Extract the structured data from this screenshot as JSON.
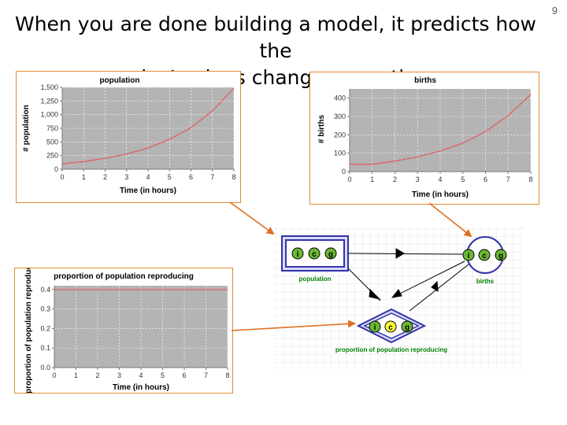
{
  "slide": {
    "number": "9",
    "title_line1": "When you are done building a model, it predicts how the",
    "title_line2": "nodes’ values changes over time."
  },
  "chart_data": [
    {
      "type": "line",
      "title": "population",
      "xlabel": "Time (in hours)",
      "ylabel": "# population",
      "x": [
        0,
        1,
        2,
        3,
        4,
        5,
        6,
        7,
        8
      ],
      "series": [
        {
          "values": [
            100,
            140,
            200,
            280,
            390,
            550,
            760,
            1070,
            1480
          ]
        }
      ],
      "xlim": [
        0,
        8
      ],
      "ylim": [
        0,
        1500
      ],
      "yticks": [
        0,
        250,
        500,
        750,
        1000,
        1250,
        1500
      ],
      "ytick_labels": [
        "0",
        "250",
        "500",
        "750",
        "1,000",
        "1,250",
        "1,500"
      ],
      "xticks": [
        0,
        1,
        2,
        3,
        4,
        5,
        6,
        7,
        8
      ],
      "grid": true,
      "line_color": "#e06060",
      "plot_bg": "#b4b4b4"
    },
    {
      "type": "line",
      "title": "births",
      "xlabel": "Time (in hours)",
      "ylabel": "# births",
      "x": [
        0,
        1,
        2,
        3,
        4,
        5,
        6,
        7,
        8
      ],
      "series": [
        {
          "values": [
            40,
            40,
            57,
            80,
            112,
            155,
            218,
            305,
            420
          ]
        }
      ],
      "xlim": [
        0,
        8
      ],
      "ylim": [
        0,
        450
      ],
      "yticks": [
        0,
        100,
        200,
        300,
        400
      ],
      "ytick_labels": [
        "0",
        "100",
        "200",
        "300",
        "400"
      ],
      "xticks": [
        0,
        1,
        2,
        3,
        4,
        5,
        6,
        7,
        8
      ],
      "grid": true,
      "line_color": "#e06060",
      "plot_bg": "#b4b4b4"
    },
    {
      "type": "line",
      "title": "proportion of population reproducing",
      "xlabel": "Time (in hours)",
      "ylabel": "proportion of population reproducing",
      "x": [
        0,
        1,
        2,
        3,
        4,
        5,
        6,
        7,
        8
      ],
      "series": [
        {
          "values": [
            0.4,
            0.4,
            0.4,
            0.4,
            0.4,
            0.4,
            0.4,
            0.4,
            0.4
          ]
        }
      ],
      "xlim": [
        0,
        8
      ],
      "ylim": [
        0,
        0.42
      ],
      "yticks": [
        0,
        0.1,
        0.2,
        0.3,
        0.4
      ],
      "ytick_labels": [
        "0.0",
        "0.1",
        "0.2",
        "0.3",
        "0.4"
      ],
      "xticks": [
        0,
        1,
        2,
        3,
        4,
        5,
        6,
        7,
        8
      ],
      "grid": true,
      "line_color": "#e06060",
      "plot_bg": "#b4b4b4"
    }
  ],
  "diagram": {
    "nodes": [
      {
        "id": "population",
        "label": "population",
        "shape": "rectangle",
        "badges": [
          "i",
          "c",
          "g"
        ]
      },
      {
        "id": "births",
        "label": "births",
        "shape": "circle",
        "badges": [
          "i",
          "c",
          "g"
        ]
      },
      {
        "id": "proportion",
        "label": "proportion of population reproducing",
        "shape": "diamond",
        "badges": [
          "i",
          "c",
          "g"
        ]
      }
    ],
    "colors": {
      "node_border": "#3333aa",
      "node_fill": "#d8dcf4",
      "badge_green": "#6ab832",
      "badge_yellow": "#ffff33",
      "label_green": "#008000",
      "grid_line": "#dddddd",
      "callout_arrow": "#e07020"
    }
  }
}
